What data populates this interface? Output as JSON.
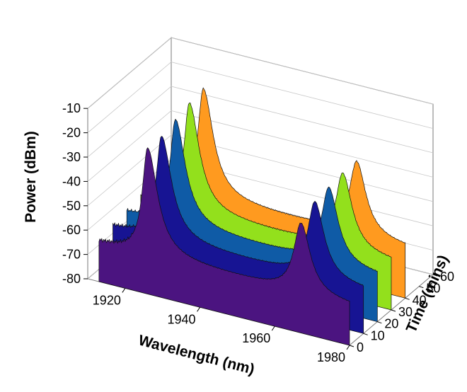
{
  "chart_data": {
    "type": "area",
    "subtype": "3d-waterfall",
    "xlabel": "Wavelength (nm)",
    "ylabel": "Power (dBm)",
    "zlabel": "Time (mins)",
    "xlim": [
      1910,
      1980
    ],
    "ylim": [
      -80,
      -10
    ],
    "zlim": [
      0,
      60
    ],
    "x_ticks": [
      1920,
      1940,
      1960,
      1980
    ],
    "y_ticks": [
      -80,
      -70,
      -60,
      -50,
      -40,
      -30,
      -20,
      -10
    ],
    "z_ticks": [
      0,
      10,
      20,
      30,
      40,
      50,
      60
    ],
    "grid": true,
    "series": [
      {
        "time": 0,
        "color": "#4b1480",
        "peaks": [
          {
            "x": 1926,
            "y": -20
          },
          {
            "x": 1967,
            "y": -35
          }
        ],
        "baseline": -63.5
      },
      {
        "time": 10,
        "color": "#171493",
        "peaks": [
          {
            "x": 1926,
            "y": -20
          },
          {
            "x": 1967,
            "y": -31
          }
        ],
        "baseline": -62
      },
      {
        "time": 20,
        "color": "#0f5ba6",
        "peaks": [
          {
            "x": 1926,
            "y": -18
          },
          {
            "x": 1967,
            "y": -30
          }
        ],
        "baseline": -61
      },
      {
        "time": 30,
        "color": "#93e01c",
        "peaks": [
          {
            "x": 1926,
            "y": -16
          },
          {
            "x": 1967,
            "y": -29
          }
        ],
        "baseline": -60
      },
      {
        "time": 40,
        "color": "#ff9a1f",
        "peaks": [
          {
            "x": 1926,
            "y": -15
          },
          {
            "x": 1967,
            "y": -29
          }
        ],
        "baseline": -59
      }
    ]
  }
}
